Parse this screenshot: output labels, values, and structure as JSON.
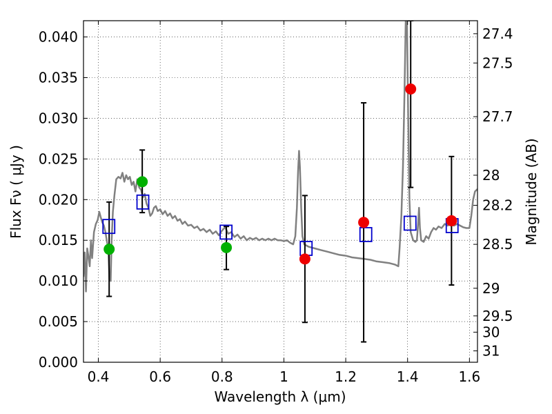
{
  "chart_data": {
    "type": "scatter",
    "xlabel": "Wavelength  λ (μm)",
    "ylabel": "Flux  Fν  ( μJy )",
    "ylabel_right": "Magnitude (AB)",
    "xlim": [
      0.352,
      1.626
    ],
    "ylim": [
      0.0,
      0.042
    ],
    "grid": true,
    "x_ticks": [
      {
        "value": 0.4,
        "label": "0.4"
      },
      {
        "value": 0.6,
        "label": "0.6"
      },
      {
        "value": 0.8,
        "label": "0.8"
      },
      {
        "value": 1.0,
        "label": "1"
      },
      {
        "value": 1.2,
        "label": "1.2"
      },
      {
        "value": 1.4,
        "label": "1.4"
      },
      {
        "value": 1.6,
        "label": "1.6"
      }
    ],
    "y_ticks": [
      {
        "value": 0.0,
        "label": "0.000"
      },
      {
        "value": 0.005,
        "label": "0.005"
      },
      {
        "value": 0.01,
        "label": "0.010"
      },
      {
        "value": 0.015,
        "label": "0.015"
      },
      {
        "value": 0.02,
        "label": "0.020"
      },
      {
        "value": 0.025,
        "label": "0.025"
      },
      {
        "value": 0.03,
        "label": "0.030"
      },
      {
        "value": 0.035,
        "label": "0.035"
      },
      {
        "value": 0.04,
        "label": "0.040"
      }
    ],
    "right_ticks": [
      {
        "label": "27.4",
        "flux": 0.0404
      },
      {
        "label": "27.5",
        "flux": 0.0368
      },
      {
        "label": "27.7",
        "flux": 0.0302
      },
      {
        "label": "28",
        "flux": 0.023
      },
      {
        "label": "28.2",
        "flux": 0.0193
      },
      {
        "label": "28.5",
        "flux": 0.0145
      },
      {
        "label": "29",
        "flux": 0.0091
      },
      {
        "label": "29.5",
        "flux": 0.0057
      },
      {
        "label": "30",
        "flux": 0.0037
      },
      {
        "label": "31",
        "flux": 0.0014
      }
    ],
    "sed_color": "#808080",
    "sed_curve": [
      [
        0.352,
        0.0105
      ],
      [
        0.356,
        0.0135
      ],
      [
        0.36,
        0.0087
      ],
      [
        0.364,
        0.014
      ],
      [
        0.368,
        0.013
      ],
      [
        0.372,
        0.0118
      ],
      [
        0.376,
        0.015
      ],
      [
        0.38,
        0.0128
      ],
      [
        0.386,
        0.016
      ],
      [
        0.392,
        0.017
      ],
      [
        0.398,
        0.0175
      ],
      [
        0.403,
        0.0185
      ],
      [
        0.408,
        0.0178
      ],
      [
        0.413,
        0.0172
      ],
      [
        0.418,
        0.0168
      ],
      [
        0.423,
        0.016
      ],
      [
        0.428,
        0.0148
      ],
      [
        0.432,
        0.014
      ],
      [
        0.436,
        0.0102
      ],
      [
        0.44,
        0.01
      ],
      [
        0.443,
        0.015
      ],
      [
        0.447,
        0.0185
      ],
      [
        0.452,
        0.0205
      ],
      [
        0.458,
        0.0225
      ],
      [
        0.465,
        0.0228
      ],
      [
        0.472,
        0.0226
      ],
      [
        0.478,
        0.0233
      ],
      [
        0.484,
        0.0222
      ],
      [
        0.49,
        0.023
      ],
      [
        0.496,
        0.0225
      ],
      [
        0.502,
        0.0228
      ],
      [
        0.508,
        0.0218
      ],
      [
        0.514,
        0.0222
      ],
      [
        0.52,
        0.021
      ],
      [
        0.526,
        0.0225
      ],
      [
        0.532,
        0.0215
      ],
      [
        0.538,
        0.0212
      ],
      [
        0.544,
        0.0203
      ],
      [
        0.55,
        0.0207
      ],
      [
        0.556,
        0.0195
      ],
      [
        0.562,
        0.019
      ],
      [
        0.568,
        0.018
      ],
      [
        0.574,
        0.0183
      ],
      [
        0.58,
        0.019
      ],
      [
        0.586,
        0.0192
      ],
      [
        0.592,
        0.0186
      ],
      [
        0.6,
        0.0188
      ],
      [
        0.608,
        0.0182
      ],
      [
        0.616,
        0.0186
      ],
      [
        0.624,
        0.018
      ],
      [
        0.632,
        0.0183
      ],
      [
        0.64,
        0.0177
      ],
      [
        0.648,
        0.018
      ],
      [
        0.656,
        0.0174
      ],
      [
        0.664,
        0.0176
      ],
      [
        0.672,
        0.017
      ],
      [
        0.68,
        0.0173
      ],
      [
        0.69,
        0.0168
      ],
      [
        0.7,
        0.0169
      ],
      [
        0.71,
        0.0165
      ],
      [
        0.72,
        0.0167
      ],
      [
        0.73,
        0.0162
      ],
      [
        0.74,
        0.0164
      ],
      [
        0.75,
        0.016
      ],
      [
        0.76,
        0.0163
      ],
      [
        0.77,
        0.0158
      ],
      [
        0.78,
        0.0161
      ],
      [
        0.79,
        0.0156
      ],
      [
        0.8,
        0.0162
      ],
      [
        0.81,
        0.0166
      ],
      [
        0.82,
        0.0158
      ],
      [
        0.83,
        0.016
      ],
      [
        0.84,
        0.0154
      ],
      [
        0.85,
        0.0157
      ],
      [
        0.86,
        0.0152
      ],
      [
        0.87,
        0.0155
      ],
      [
        0.88,
        0.015
      ],
      [
        0.89,
        0.0153
      ],
      [
        0.9,
        0.0151
      ],
      [
        0.91,
        0.0153
      ],
      [
        0.92,
        0.015
      ],
      [
        0.93,
        0.0152
      ],
      [
        0.94,
        0.015
      ],
      [
        0.95,
        0.0152
      ],
      [
        0.96,
        0.015
      ],
      [
        0.97,
        0.0152
      ],
      [
        0.98,
        0.015
      ],
      [
        0.99,
        0.015
      ],
      [
        1.0,
        0.0149
      ],
      [
        1.01,
        0.015
      ],
      [
        1.02,
        0.0147
      ],
      [
        1.03,
        0.0145
      ],
      [
        1.037,
        0.0155
      ],
      [
        1.042,
        0.019
      ],
      [
        1.046,
        0.0235
      ],
      [
        1.049,
        0.026
      ],
      [
        1.052,
        0.024
      ],
      [
        1.056,
        0.019
      ],
      [
        1.06,
        0.0155
      ],
      [
        1.066,
        0.0145
      ],
      [
        1.08,
        0.0142
      ],
      [
        1.1,
        0.014
      ],
      [
        1.12,
        0.0138
      ],
      [
        1.14,
        0.0136
      ],
      [
        1.16,
        0.0134
      ],
      [
        1.18,
        0.0132
      ],
      [
        1.2,
        0.0131
      ],
      [
        1.22,
        0.0129
      ],
      [
        1.24,
        0.0128
      ],
      [
        1.26,
        0.0127
      ],
      [
        1.28,
        0.0126
      ],
      [
        1.3,
        0.0124
      ],
      [
        1.32,
        0.0123
      ],
      [
        1.34,
        0.0122
      ],
      [
        1.36,
        0.012
      ],
      [
        1.37,
        0.0118
      ],
      [
        1.374,
        0.014
      ],
      [
        1.38,
        0.018
      ],
      [
        1.385,
        0.024
      ],
      [
        1.39,
        0.033
      ],
      [
        1.394,
        0.042
      ],
      [
        1.398,
        0.042
      ],
      [
        1.402,
        0.03
      ],
      [
        1.406,
        0.02
      ],
      [
        1.41,
        0.016
      ],
      [
        1.418,
        0.015
      ],
      [
        1.425,
        0.0148
      ],
      [
        1.43,
        0.015
      ],
      [
        1.434,
        0.017
      ],
      [
        1.437,
        0.019
      ],
      [
        1.44,
        0.0165
      ],
      [
        1.444,
        0.015
      ],
      [
        1.452,
        0.0148
      ],
      [
        1.46,
        0.0155
      ],
      [
        1.468,
        0.0152
      ],
      [
        1.476,
        0.016
      ],
      [
        1.484,
        0.0165
      ],
      [
        1.492,
        0.0163
      ],
      [
        1.5,
        0.0167
      ],
      [
        1.51,
        0.0165
      ],
      [
        1.52,
        0.017
      ],
      [
        1.53,
        0.0168
      ],
      [
        1.54,
        0.0172
      ],
      [
        1.55,
        0.0168
      ],
      [
        1.56,
        0.017
      ],
      [
        1.57,
        0.0168
      ],
      [
        1.58,
        0.0166
      ],
      [
        1.59,
        0.0165
      ],
      [
        1.6,
        0.0165
      ],
      [
        1.606,
        0.018
      ],
      [
        1.612,
        0.02
      ],
      [
        1.618,
        0.021
      ],
      [
        1.626,
        0.0213
      ]
    ],
    "model_points": {
      "color": "#0000cc",
      "points": [
        [
          0.434,
          0.0167
        ],
        [
          0.544,
          0.0197
        ],
        [
          0.813,
          0.016
        ],
        [
          1.072,
          0.014
        ],
        [
          1.265,
          0.0157
        ],
        [
          1.408,
          0.0171
        ],
        [
          1.544,
          0.0168
        ]
      ]
    },
    "observed_points": [
      {
        "x": 0.435,
        "y": 0.0139,
        "err_low": 0.0081,
        "err_high": 0.0197,
        "color": "#00b000"
      },
      {
        "x": 0.542,
        "y": 0.0222,
        "err_low": 0.0184,
        "err_high": 0.0261,
        "color": "#00b000"
      },
      {
        "x": 0.814,
        "y": 0.0141,
        "err_low": 0.0114,
        "err_high": 0.0167,
        "color": "#00b000"
      },
      {
        "x": 1.068,
        "y": 0.0127,
        "err_low": 0.0049,
        "err_high": 0.0205,
        "color": "#ee0000"
      },
      {
        "x": 1.258,
        "y": 0.0172,
        "err_low": 0.0025,
        "err_high": 0.0319,
        "color": "#ee0000"
      },
      {
        "x": 1.41,
        "y": 0.0336,
        "err_low": 0.0215,
        "err_high": 0.042,
        "color": "#ee0000"
      },
      {
        "x": 1.542,
        "y": 0.0174,
        "err_low": 0.0095,
        "err_high": 0.0253,
        "color": "#ee0000"
      }
    ]
  }
}
